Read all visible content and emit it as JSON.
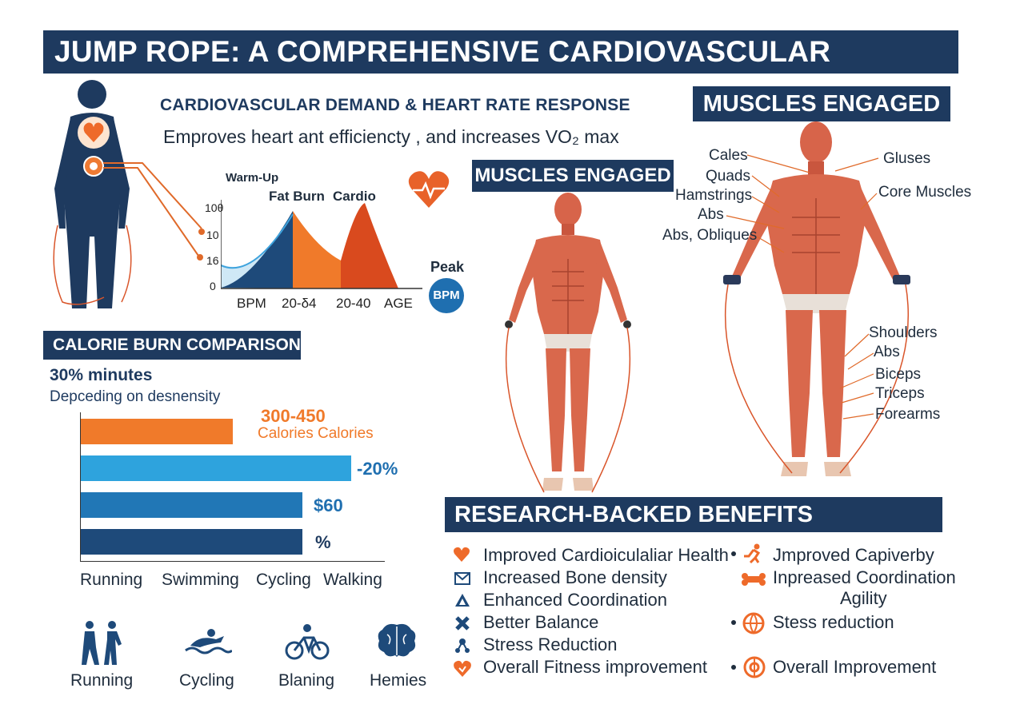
{
  "header": {
    "title": "JUMP ROPE: A COMPREHENSIVE CARDIOVASCULAR WORKOUT"
  },
  "cardio": {
    "title": "CARDIOVASCULAR DEMAND & HEART RATE RESPONSE",
    "subtitle": "Emproves heart ant efficiencty , and increases VO₂ max",
    "ticks": [
      "10θ",
      "10",
      "16",
      "0"
    ],
    "xlabels": [
      "BPM",
      "20-δ4",
      "20-40",
      "AGE"
    ],
    "zones": [
      "Warm-Up",
      "Fat Burn",
      "Cardio"
    ],
    "peak": "Peak",
    "bpm": "BPM",
    "colors": {
      "dark": "#1e4a7a",
      "light": "#3ea3dd",
      "orange": "#f07a2a",
      "red": "#d94a1e"
    }
  },
  "calorie": {
    "title": "CALORIE BURN COMPARISON",
    "line1": "30% minutes",
    "line2": "Depceding on desnensity",
    "bars": [
      {
        "value_label": "300-450",
        "sub_label": "Calories Calories",
        "fraction": 0.5,
        "color": "#f07a2a"
      },
      {
        "value_label": "-20%",
        "fraction": 0.89,
        "color": "#2ea3dd"
      },
      {
        "value_label": "$60",
        "fraction": 0.73,
        "color": "#2177b6"
      },
      {
        "value_label": "%",
        "fraction": 0.73,
        "color": "#1e4a7a"
      }
    ],
    "categories": [
      "Running",
      "Swimming",
      "Cycling",
      "Walking"
    ],
    "icons": [
      {
        "icon": "runners-icon",
        "label": "Running"
      },
      {
        "icon": "swimmer-icon",
        "label": "Cycling"
      },
      {
        "icon": "cyclist-icon",
        "label": "Blaning"
      },
      {
        "icon": "brain-icon",
        "label": "Hemies"
      }
    ]
  },
  "muscles": {
    "title_large": "MUSCLES ENGAGED",
    "title_small": "MUSCLES ENGAGED",
    "left_labels": [
      "Cales",
      "Quads",
      "Hamstrings",
      "Abs",
      "Abs, Obliques"
    ],
    "right_labels_top": [
      "Gluses",
      "Core Muscles"
    ],
    "right_labels_bottom": [
      "Shoulders",
      "Abs",
      "Biceps",
      "Triceps",
      "Forearms"
    ]
  },
  "research": {
    "title": "RESEARCH-BACKED BENEFITS OVERVIEW",
    "left": [
      {
        "icon": "heart-icon",
        "text": "Improved Cardioiculaliar Health"
      },
      {
        "icon": "envelope-icon",
        "text": "Increased Bone density"
      },
      {
        "icon": "triangle-icon",
        "text": "Enhanced Coordination"
      },
      {
        "icon": "cross-icon",
        "text": "Better Balance"
      },
      {
        "icon": "molecule-icon",
        "text": "Stress Reduction"
      },
      {
        "icon": "heart-shield-icon",
        "text": "Overall Fitness improvement"
      }
    ],
    "right": [
      {
        "icon": "runner-icon",
        "text": "Jmproved Capiverby"
      },
      {
        "icon": "bone-icon",
        "text": "Inpreased Coordination"
      },
      {
        "icon": "",
        "text": "Agility"
      },
      {
        "icon": "globe-icon",
        "text": "Stess reduction"
      },
      {
        "icon": "target-icon",
        "text": "Overall Improvement"
      }
    ]
  }
}
